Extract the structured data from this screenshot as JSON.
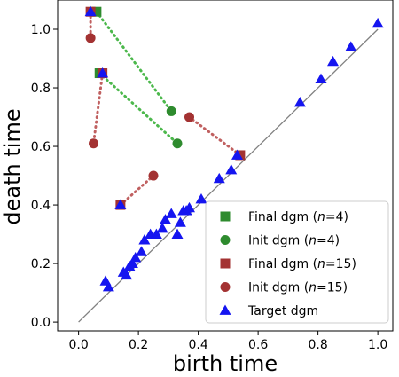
{
  "chart_data": {
    "type": "scatter",
    "xlabel": "birth time",
    "ylabel": "death time",
    "xlim": [
      -0.07,
      1.05
    ],
    "ylim": [
      -0.03,
      1.1
    ],
    "x_ticks": [
      "0.0",
      "0.2",
      "0.4",
      "0.6",
      "0.8",
      "1.0"
    ],
    "y_ticks": [
      "0.0",
      "0.2",
      "0.4",
      "0.6",
      "0.8",
      "1.0"
    ],
    "diagonal_color": "#808080",
    "legend_position": "lower-right",
    "series": [
      {
        "name_parts": [
          "Final dgm (",
          "n",
          "=4)"
        ],
        "marker": "square",
        "color": "#2e8b2e",
        "points": [
          [
            0.06,
            1.06
          ],
          [
            0.07,
            0.85
          ]
        ]
      },
      {
        "name_parts": [
          "Init dgm (",
          "n",
          "=4)"
        ],
        "marker": "circle",
        "color": "#2e8b2e",
        "points": [
          [
            0.31,
            0.72
          ],
          [
            0.33,
            0.61
          ]
        ]
      },
      {
        "name_parts": [
          "Final dgm (",
          "n",
          "=15)"
        ],
        "marker": "square",
        "color": "#a33232",
        "points": [
          [
            0.04,
            1.06
          ],
          [
            0.08,
            0.85
          ],
          [
            0.14,
            0.4
          ],
          [
            0.54,
            0.57
          ]
        ]
      },
      {
        "name_parts": [
          "Init dgm (",
          "n",
          "=15)"
        ],
        "marker": "circle",
        "color": "#a33232",
        "points": [
          [
            0.04,
            0.97
          ],
          [
            0.05,
            0.61
          ],
          [
            0.25,
            0.5
          ],
          [
            0.37,
            0.7
          ]
        ]
      },
      {
        "name_parts": [
          "Target dgm",
          "",
          ""
        ],
        "marker": "triangle",
        "color": "#1515f0",
        "points": [
          [
            0.04,
            1.06
          ],
          [
            0.08,
            0.85
          ],
          [
            0.09,
            0.14
          ],
          [
            0.1,
            0.12
          ],
          [
            0.14,
            0.4
          ],
          [
            0.15,
            0.17
          ],
          [
            0.16,
            0.16
          ],
          [
            0.17,
            0.19
          ],
          [
            0.18,
            0.2
          ],
          [
            0.19,
            0.22
          ],
          [
            0.21,
            0.24
          ],
          [
            0.22,
            0.28
          ],
          [
            0.24,
            0.3
          ],
          [
            0.26,
            0.3
          ],
          [
            0.28,
            0.32
          ],
          [
            0.29,
            0.35
          ],
          [
            0.31,
            0.37
          ],
          [
            0.33,
            0.3
          ],
          [
            0.34,
            0.34
          ],
          [
            0.35,
            0.38
          ],
          [
            0.36,
            0.38
          ],
          [
            0.37,
            0.39
          ],
          [
            0.41,
            0.42
          ],
          [
            0.47,
            0.49
          ],
          [
            0.51,
            0.52
          ],
          [
            0.53,
            0.57
          ],
          [
            0.74,
            0.75
          ],
          [
            0.81,
            0.83
          ],
          [
            0.85,
            0.89
          ],
          [
            0.91,
            0.94
          ],
          [
            1.0,
            1.02
          ]
        ]
      }
    ],
    "matchings": [
      {
        "color": "#4cb84c",
        "from": [
          0.06,
          1.06
        ],
        "to": [
          0.31,
          0.72
        ]
      },
      {
        "color": "#4cb84c",
        "from": [
          0.07,
          0.85
        ],
        "to": [
          0.33,
          0.61
        ]
      },
      {
        "color": "#c06060",
        "from": [
          0.04,
          1.06
        ],
        "to": [
          0.04,
          0.97
        ]
      },
      {
        "color": "#c06060",
        "from": [
          0.08,
          0.85
        ],
        "to": [
          0.05,
          0.61
        ]
      },
      {
        "color": "#c06060",
        "from": [
          0.14,
          0.4
        ],
        "to": [
          0.25,
          0.5
        ]
      },
      {
        "color": "#c06060",
        "from": [
          0.54,
          0.57
        ],
        "to": [
          0.37,
          0.7
        ]
      }
    ]
  }
}
